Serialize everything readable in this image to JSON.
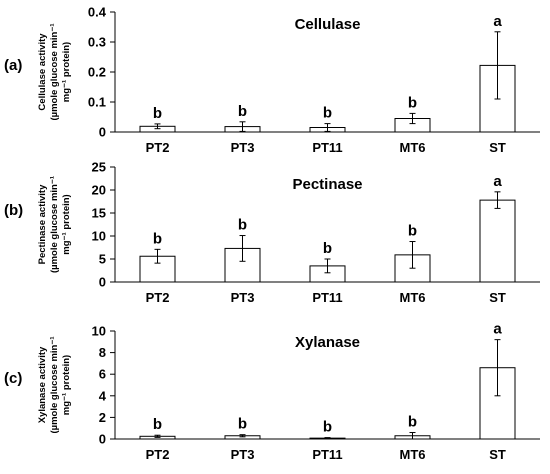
{
  "chart_data": [
    {
      "type": "bar",
      "panel_label": "(a)",
      "title": "Cellulase",
      "ylabel_line1": "Cellulase activity",
      "ylabel_line2": "(µmole glucose min⁻¹",
      "ylabel_line3": "mg⁻¹ protein)",
      "categories": [
        "PT2",
        "PT3",
        "PT11",
        "MT6",
        "ST"
      ],
      "values": [
        0.019,
        0.018,
        0.015,
        0.045,
        0.222
      ],
      "errors": [
        0.008,
        0.016,
        0.013,
        0.017,
        0.112
      ],
      "significance": [
        "b",
        "b",
        "b",
        "b",
        "a"
      ],
      "ylim": [
        0,
        0.4
      ],
      "yticks": [
        0,
        0.1,
        0.2,
        0.3,
        0.4
      ],
      "ytick_labels": [
        "0",
        "0.1",
        "0.2",
        "0.3",
        "0.4"
      ],
      "grid": false
    },
    {
      "type": "bar",
      "panel_label": "(b)",
      "title": "Pectinase",
      "ylabel_line1": "Pectinase activity",
      "ylabel_line2": "(µmole glucose min⁻¹",
      "ylabel_line3": "mg⁻¹ protein)",
      "categories": [
        "PT2",
        "PT3",
        "PT11",
        "MT6",
        "ST"
      ],
      "values": [
        5.6,
        7.3,
        3.5,
        5.9,
        17.8
      ],
      "errors": [
        1.5,
        2.8,
        1.5,
        2.9,
        1.8
      ],
      "significance": [
        "b",
        "b",
        "b",
        "b",
        "a"
      ],
      "ylim": [
        0,
        25
      ],
      "yticks": [
        0,
        5,
        10,
        15,
        20,
        25
      ],
      "ytick_labels": [
        "0",
        "5",
        "10",
        "15",
        "20",
        "25"
      ],
      "grid": false
    },
    {
      "type": "bar",
      "panel_label": "(c)",
      "title": "Xylanase",
      "ylabel_line1": "Xylanase activity",
      "ylabel_line2": "(µmole glucose min⁻¹",
      "ylabel_line3": "mg⁻¹ protein)",
      "categories": [
        "PT2",
        "PT3",
        "PT11",
        "MT6",
        "ST"
      ],
      "values": [
        0.25,
        0.3,
        0.08,
        0.3,
        6.6
      ],
      "errors": [
        0.1,
        0.1,
        0.05,
        0.3,
        2.6
      ],
      "significance": [
        "b",
        "b",
        "b",
        "b",
        "a"
      ],
      "ylim": [
        0,
        10
      ],
      "yticks": [
        0,
        2,
        4,
        6,
        8,
        10
      ],
      "ytick_labels": [
        "0",
        "2",
        "4",
        "6",
        "8",
        "10"
      ],
      "grid": false
    }
  ]
}
